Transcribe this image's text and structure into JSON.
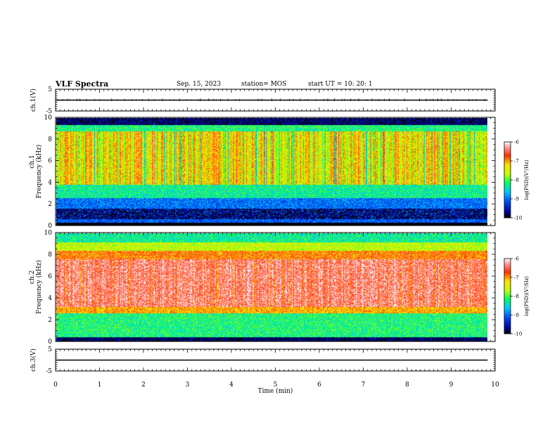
{
  "header": {
    "title": "VLF Spectra",
    "date": "Sep. 15, 2023",
    "station": "station= MOS",
    "start": "start  UT =   10: 20: 1"
  },
  "chart_data": [
    {
      "type": "line",
      "panel": "ch1-voltage",
      "ylabel": "ch.1(V)",
      "yticks": [
        "5",
        "-5"
      ],
      "ylim": [
        -5,
        5
      ],
      "xlim": [
        0,
        10
      ],
      "series": [
        {
          "x": [
            0,
            9.83
          ],
          "values": [
            0,
            0
          ]
        }
      ]
    },
    {
      "type": "heatmap",
      "panel": "ch1-spectrogram",
      "ylabel": "ch.1",
      "ylabel2": "Frequency (kHz)",
      "yticks": [
        "0",
        "2",
        "4",
        "6",
        "8",
        "10"
      ],
      "ylim": [
        0,
        10
      ],
      "xlim": [
        0,
        10
      ],
      "data_end_min": 9.83,
      "colorbar": {
        "label": "log(PSD)(V²/Hz)",
        "ticks": [
          "-6",
          "-7",
          "-8",
          "-9",
          "-10"
        ],
        "range": [
          -10,
          -6
        ]
      }
    },
    {
      "type": "heatmap",
      "panel": "ch2-spectrogram",
      "ylabel": "ch.2",
      "ylabel2": "Frequency (kHz)",
      "yticks": [
        "0",
        "2",
        "4",
        "6",
        "8",
        "10"
      ],
      "ylim": [
        0,
        10
      ],
      "xlim": [
        0,
        10
      ],
      "data_end_min": 9.83,
      "colorbar": {
        "label": "log(PSD)(V²/Hz)",
        "ticks": [
          "-6",
          "-7",
          "-8",
          "-9",
          "-10"
        ],
        "range": [
          -10,
          -6
        ]
      }
    },
    {
      "type": "line",
      "panel": "ch3-voltage",
      "ylabel": "ch.3(V)",
      "yticks": [
        "5",
        "-5"
      ],
      "ylim": [
        -5,
        5
      ],
      "xlim": [
        0,
        10
      ],
      "xlabel": "Time  (min)",
      "xticks": [
        "0",
        "1",
        "2",
        "3",
        "4",
        "5",
        "6",
        "7",
        "8",
        "9",
        "10"
      ],
      "series": [
        {
          "x": [
            0,
            9.83
          ],
          "values": [
            0,
            0
          ]
        }
      ]
    }
  ]
}
